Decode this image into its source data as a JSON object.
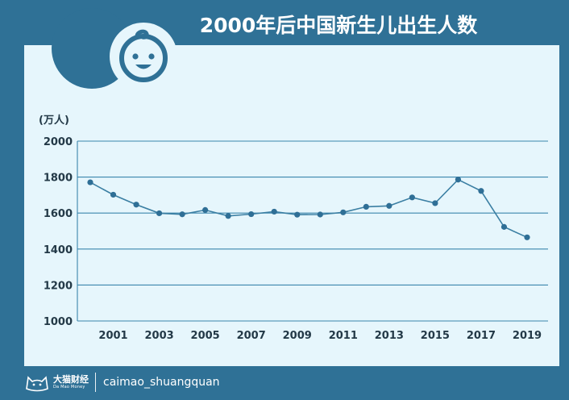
{
  "title": "2000年后中国新生儿出生人数",
  "icons": {
    "emblem": "baby-face-icon",
    "footer_logo": "cat-face-logo-icon"
  },
  "colors": {
    "background": "#2f7196",
    "panel": "#e6f6fc",
    "line": "#3b7fa3",
    "point": "#2f6f96",
    "grid": "#3b86ad",
    "axis_text": "#233947"
  },
  "footer": {
    "brand_cn": "大猫财经",
    "brand_en": "Da Mao Money",
    "handle": "caimao_shuangquan"
  },
  "chart_data": {
    "type": "line",
    "title": "2000年后中国新生儿出生人数",
    "ylabel": "(万人)",
    "xlabel": "",
    "ylim": [
      1000,
      2000
    ],
    "yticks": [
      1000,
      1200,
      1400,
      1600,
      1800,
      2000
    ],
    "xlim": [
      2000,
      2019
    ],
    "xticks": [
      2001,
      2003,
      2005,
      2007,
      2009,
      2011,
      2013,
      2015,
      2017,
      2019
    ],
    "grid": "horizontal",
    "series": [
      {
        "x": [
          2000,
          2001,
          2002,
          2003,
          2004,
          2005,
          2006,
          2007,
          2008,
          2009,
          2010,
          2011,
          2012,
          2013,
          2014,
          2015,
          2016,
          2017,
          2018,
          2019
        ],
        "values": [
          1771,
          1702,
          1647,
          1599,
          1593,
          1617,
          1584,
          1594,
          1608,
          1591,
          1592,
          1604,
          1635,
          1640,
          1687,
          1655,
          1786,
          1723,
          1523,
          1465
        ]
      }
    ]
  }
}
